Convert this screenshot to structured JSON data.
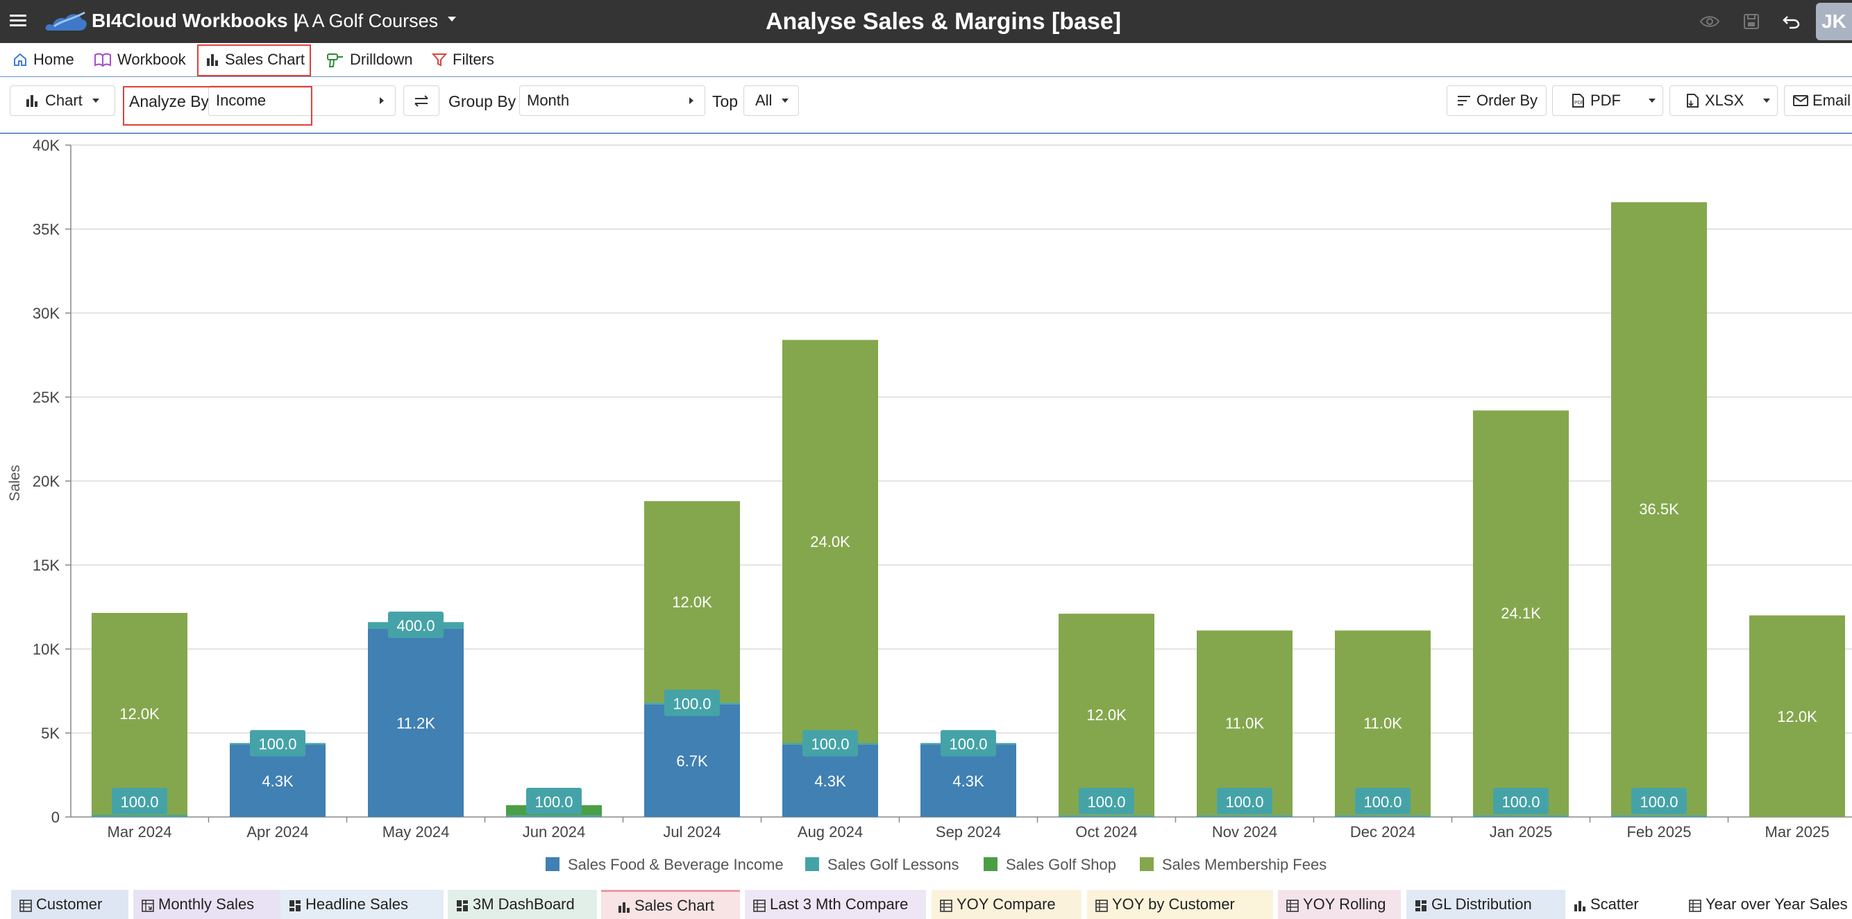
{
  "app": {
    "name": "BI4Cloud Workbooks |",
    "company": "A A Golf Courses",
    "page_title": "Analyse Sales & Margins [base]",
    "user_initials": "JK"
  },
  "nav": {
    "tabs": [
      {
        "label": "Home",
        "icon": "home-icon"
      },
      {
        "label": "Workbook",
        "icon": "book-icon"
      },
      {
        "label": "Sales Chart",
        "icon": "bar-chart-icon"
      },
      {
        "label": "Drilldown",
        "icon": "drill-icon"
      },
      {
        "label": "Filters",
        "icon": "filter-icon"
      }
    ]
  },
  "toolbar": {
    "chart_label": "Chart",
    "analyze_by_label": "Analyze By",
    "analyze_by_value": "Income",
    "group_by_label": "Group By",
    "group_by_value": "Month",
    "top_label": "Top",
    "top_value": "All",
    "order_by_label": "Order By",
    "pdf_label": "PDF",
    "xlsx_label": "XLSX",
    "email_label": "Email"
  },
  "chart_data": {
    "type": "bar",
    "stacked": true,
    "ylabel": "Sales",
    "ylim": [
      0,
      40000
    ],
    "yticks": [
      "0",
      "5K",
      "10K",
      "15K",
      "20K",
      "25K",
      "30K",
      "35K",
      "40K"
    ],
    "grid": true,
    "legend_position": "bottom",
    "categories": [
      "Mar 2024",
      "Apr 2024",
      "May 2024",
      "Jun 2024",
      "Jul 2024",
      "Aug 2024",
      "Sep 2024",
      "Oct 2024",
      "Nov 2024",
      "Dec 2024",
      "Jan 2025",
      "Feb 2025",
      "Mar 2025"
    ],
    "series": [
      {
        "name": "Sales Food & Beverage Income",
        "color": "#4080b3",
        "values": [
          0,
          4300,
          11200,
          0,
          6700,
          4300,
          4300,
          0,
          0,
          0,
          0,
          0,
          0
        ],
        "labels": [
          "",
          "4.3K",
          "11.2K",
          "",
          "6.7K",
          "4.3K",
          "4.3K",
          "",
          "",
          "",
          "",
          "",
          ""
        ]
      },
      {
        "name": "Sales Golf Lessons",
        "color": "#45a3a8",
        "values": [
          100,
          100,
          400,
          100,
          100,
          100,
          100,
          100,
          100,
          100,
          100,
          100,
          0
        ],
        "labels": [
          "100.0",
          "100.0",
          "400.0",
          "100.0",
          "100.0",
          "100.0",
          "100.0",
          "100.0",
          "100.0",
          "100.0",
          "100.0",
          "100.0",
          ""
        ]
      },
      {
        "name": "Sales Golf Shop",
        "color": "#4b9e45",
        "values": [
          50,
          0,
          0,
          600,
          0,
          0,
          0,
          0,
          0,
          0,
          0,
          0,
          0
        ],
        "labels": [
          "",
          "",
          "",
          "",
          "",
          "",
          "",
          "",
          "",
          "",
          "",
          "",
          ""
        ]
      },
      {
        "name": "Sales Membership Fees",
        "color": "#84a74d",
        "values": [
          12000,
          0,
          0,
          0,
          12000,
          24000,
          0,
          12000,
          11000,
          11000,
          24100,
          36500,
          12000
        ],
        "labels": [
          "12.0K",
          "",
          "",
          "",
          "12.0K",
          "24.0K",
          "",
          "12.0K",
          "11.0K",
          "11.0K",
          "24.1K",
          "36.5K",
          "12.0K"
        ]
      }
    ]
  },
  "bottom_tabs": [
    {
      "label": "Customer",
      "color": "#dfe6f3",
      "icon": "table-icon"
    },
    {
      "label": "Monthly Sales",
      "color": "#e9e2f4",
      "icon": "pivot-icon"
    },
    {
      "label": "Headline Sales",
      "color": "#e4ecf5",
      "icon": "dashboard-icon"
    },
    {
      "label": "3M DashBoard",
      "color": "#e2efe9",
      "icon": "dashboard-icon"
    },
    {
      "label": "Sales Chart",
      "color": "#f8e3e5",
      "icon": "bar-chart-icon"
    },
    {
      "label": "Last 3 Mth Compare",
      "color": "#efe6f5",
      "icon": "table-icon"
    },
    {
      "label": "YOY Compare",
      "color": "#fbf2dc",
      "icon": "table-icon"
    },
    {
      "label": "YOY by Customer",
      "color": "#fbf3da",
      "icon": "table-icon"
    },
    {
      "label": "YOY Rolling",
      "color": "#f5e3ec",
      "icon": "table-icon"
    },
    {
      "label": "GL Distribution",
      "color": "#e1e9f5",
      "icon": "dashboard-icon"
    },
    {
      "label": "Scatter",
      "color": "#ffffff",
      "icon": "bar-chart-icon"
    },
    {
      "label": "Year over Year Sales",
      "color": "#ffffff",
      "icon": "table-icon"
    }
  ]
}
